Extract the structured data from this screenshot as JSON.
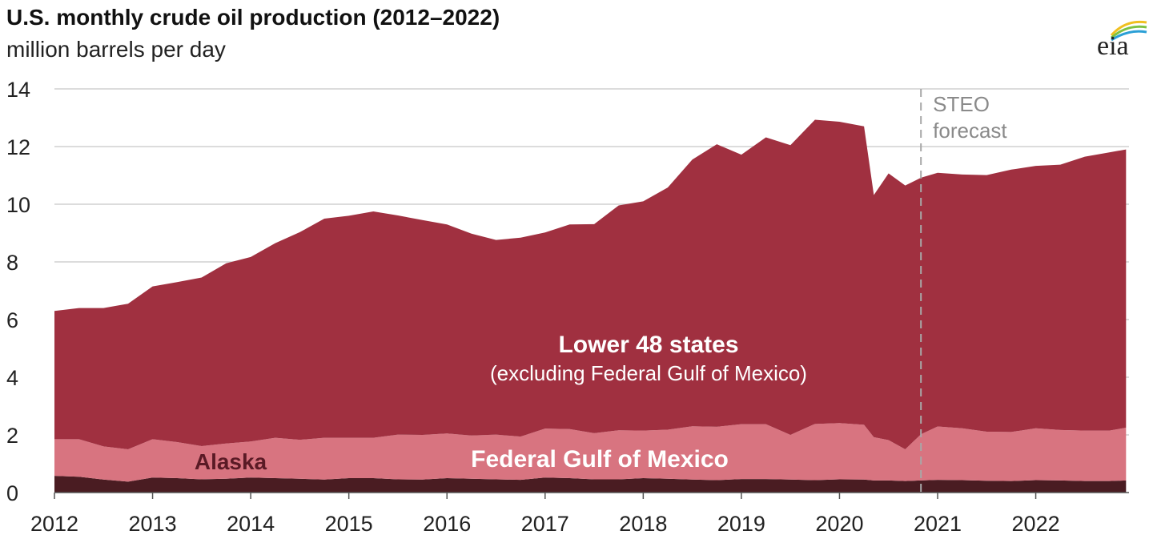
{
  "title": "U.S. monthly crude oil production (2012–2022)",
  "subtitle": "million barrels per day",
  "logo": {
    "text": "eia",
    "icon": "eia-logo-icon"
  },
  "colors": {
    "lower48": "#a03040",
    "gulf": "#d87480",
    "alaska": "#4a1c22",
    "grid": "#d0d0d0",
    "forecast_line": "#a8a8a8"
  },
  "chart_data": {
    "type": "area",
    "stacked": true,
    "title": "U.S. monthly crude oil production (2012–2022)",
    "ylabel": "million barrels per day",
    "xlabel": "",
    "xlim": [
      2012.0,
      2022.95
    ],
    "ylim": [
      0,
      14
    ],
    "y_ticks": [
      0,
      2,
      4,
      6,
      8,
      10,
      12,
      14
    ],
    "x_ticks": [
      2012,
      2013,
      2014,
      2015,
      2016,
      2017,
      2018,
      2019,
      2020,
      2021,
      2022
    ],
    "grid": true,
    "forecast_start": 2020.83,
    "forecast_label": [
      "STEO",
      "forecast"
    ],
    "x": [
      2012.0,
      2012.25,
      2012.5,
      2012.75,
      2013.0,
      2013.25,
      2013.5,
      2013.75,
      2014.0,
      2014.25,
      2014.5,
      2014.75,
      2015.0,
      2015.25,
      2015.5,
      2015.75,
      2016.0,
      2016.25,
      2016.5,
      2016.75,
      2017.0,
      2017.25,
      2017.5,
      2017.75,
      2018.0,
      2018.25,
      2018.5,
      2018.75,
      2019.0,
      2019.25,
      2019.5,
      2019.75,
      2020.0,
      2020.25,
      2020.35,
      2020.5,
      2020.67,
      2020.83,
      2021.0,
      2021.25,
      2021.5,
      2021.75,
      2022.0,
      2022.25,
      2022.5,
      2022.75,
      2022.92
    ],
    "series": [
      {
        "name": "Alaska",
        "values": [
          0.58,
          0.55,
          0.45,
          0.38,
          0.52,
          0.5,
          0.46,
          0.48,
          0.52,
          0.5,
          0.48,
          0.45,
          0.5,
          0.5,
          0.46,
          0.45,
          0.5,
          0.48,
          0.46,
          0.44,
          0.52,
          0.5,
          0.46,
          0.46,
          0.5,
          0.48,
          0.45,
          0.43,
          0.47,
          0.47,
          0.45,
          0.43,
          0.46,
          0.45,
          0.42,
          0.42,
          0.4,
          0.42,
          0.44,
          0.43,
          0.41,
          0.4,
          0.43,
          0.42,
          0.4,
          0.4,
          0.42
        ]
      },
      {
        "name": "Federal Gulf of Mexico",
        "values": [
          1.27,
          1.3,
          1.15,
          1.12,
          1.33,
          1.25,
          1.15,
          1.22,
          1.25,
          1.4,
          1.35,
          1.45,
          1.4,
          1.4,
          1.55,
          1.55,
          1.55,
          1.5,
          1.55,
          1.5,
          1.7,
          1.7,
          1.6,
          1.7,
          1.65,
          1.7,
          1.85,
          1.85,
          1.9,
          1.9,
          1.55,
          1.95,
          1.95,
          1.9,
          1.5,
          1.4,
          1.1,
          1.6,
          1.85,
          1.8,
          1.7,
          1.7,
          1.8,
          1.75,
          1.75,
          1.75,
          1.83
        ]
      },
      {
        "name": "Lower 48 states (excluding Federal Gulf of Mexico)",
        "values": [
          4.45,
          4.55,
          4.8,
          5.05,
          5.3,
          5.55,
          5.85,
          6.25,
          6.4,
          6.75,
          7.2,
          7.6,
          7.7,
          7.85,
          7.6,
          7.45,
          7.25,
          7.0,
          6.75,
          6.9,
          6.8,
          7.1,
          7.25,
          7.8,
          7.95,
          8.4,
          9.25,
          9.8,
          9.35,
          9.95,
          10.05,
          10.55,
          10.45,
          10.35,
          8.4,
          9.25,
          9.15,
          8.9,
          8.8,
          8.8,
          8.9,
          9.1,
          9.1,
          9.2,
          9.5,
          9.65,
          9.65
        ]
      }
    ],
    "annotations": [
      {
        "text": "Lower 48 states",
        "sub": "(excluding Federal Gulf of Mexico)"
      },
      {
        "text": "Federal Gulf of Mexico"
      },
      {
        "text": "Alaska"
      }
    ]
  }
}
